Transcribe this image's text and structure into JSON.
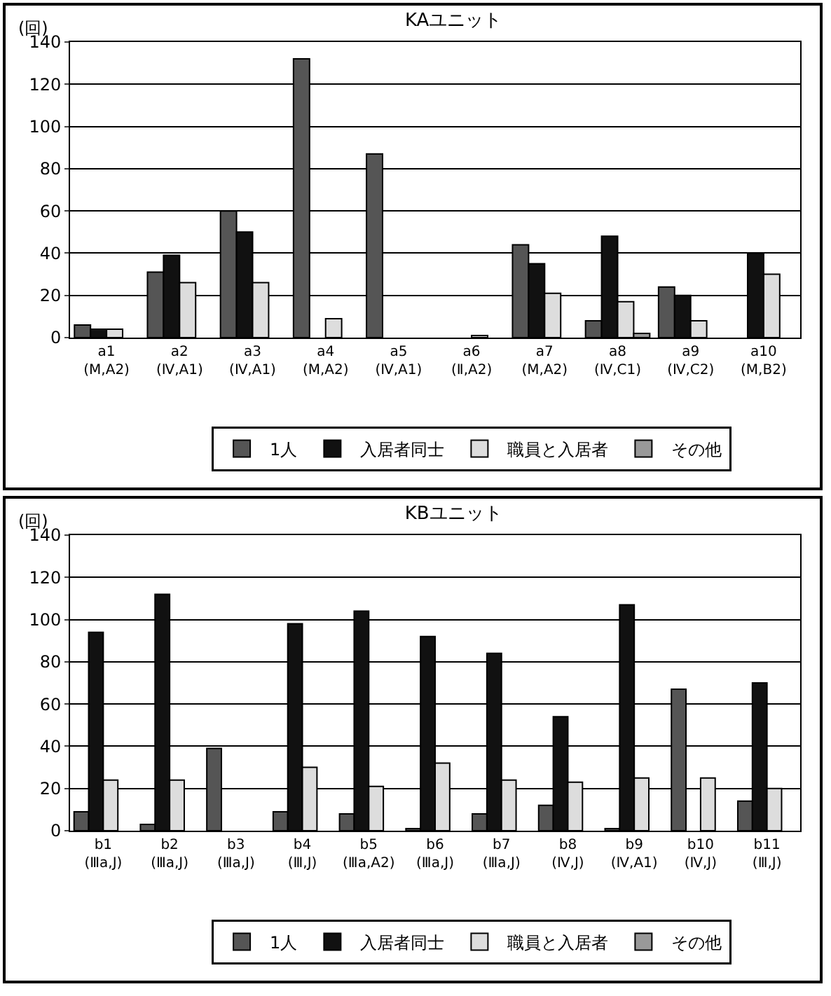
{
  "chart_data": [
    {
      "type": "bar",
      "title": "KAユニット",
      "ylabel": "(回)",
      "categories": [
        "a1\n(M,A2)",
        "a2\n(Ⅳ,A1)",
        "a3\n(Ⅳ,A1)",
        "a4\n(M,A2)",
        "a5\n(Ⅳ,A1)",
        "a6\n(Ⅱ,A2)",
        "a7\n(M,A2)",
        "a8\n(Ⅳ,C1)",
        "a9\n(Ⅳ,C2)",
        "a10\n(M,B2)"
      ],
      "series": [
        {
          "name": "1人",
          "color": "#555555",
          "values": [
            6,
            31,
            60,
            132,
            87,
            null,
            44,
            8,
            24,
            null
          ]
        },
        {
          "name": "入居者同士",
          "color": "#111111",
          "values": [
            4,
            39,
            50,
            null,
            null,
            null,
            35,
            48,
            20,
            40
          ]
        },
        {
          "name": "職員と入居者",
          "color": "#dddddd",
          "values": [
            4,
            26,
            26,
            9,
            null,
            1,
            21,
            17,
            8,
            30
          ]
        },
        {
          "name": "その他",
          "color": "#999999",
          "values": [
            null,
            null,
            null,
            null,
            null,
            null,
            null,
            2,
            null,
            null
          ]
        }
      ],
      "ylim": [
        0,
        140
      ],
      "yticks": [
        0,
        20,
        40,
        60,
        80,
        100,
        120,
        140
      ],
      "grid": "y",
      "legend": "bottom"
    },
    {
      "type": "bar",
      "title": "KBユニット",
      "ylabel": "(回)",
      "categories": [
        "b1\n(Ⅲa,J)",
        "b2\n(Ⅲa,J)",
        "b3\n(Ⅲa,J)",
        "b4\n(Ⅲ,J)",
        "b5\n(Ⅲa,A2)",
        "b6\n(Ⅲa,J)",
        "b7\n(Ⅲa,J)",
        "b8\n(Ⅳ,J)",
        "b9\n(Ⅳ,A1)",
        "b10\n(Ⅳ,J)",
        "b11\n(Ⅲ,J)"
      ],
      "series": [
        {
          "name": "1人",
          "color": "#555555",
          "values": [
            9,
            3,
            39,
            9,
            8,
            1,
            8,
            12,
            1,
            67,
            14
          ]
        },
        {
          "name": "入居者同士",
          "color": "#111111",
          "values": [
            94,
            112,
            null,
            98,
            104,
            92,
            84,
            54,
            107,
            null,
            70
          ]
        },
        {
          "name": "職員と入居者",
          "color": "#dddddd",
          "values": [
            24,
            24,
            null,
            30,
            21,
            32,
            24,
            23,
            25,
            25,
            20
          ]
        },
        {
          "name": "その他",
          "color": "#999999",
          "values": [
            null,
            null,
            null,
            null,
            null,
            null,
            null,
            null,
            null,
            null,
            null
          ]
        }
      ],
      "ylim": [
        0,
        140
      ],
      "yticks": [
        0,
        20,
        40,
        60,
        80,
        100,
        120,
        140
      ],
      "grid": "y",
      "legend": "bottom"
    }
  ]
}
